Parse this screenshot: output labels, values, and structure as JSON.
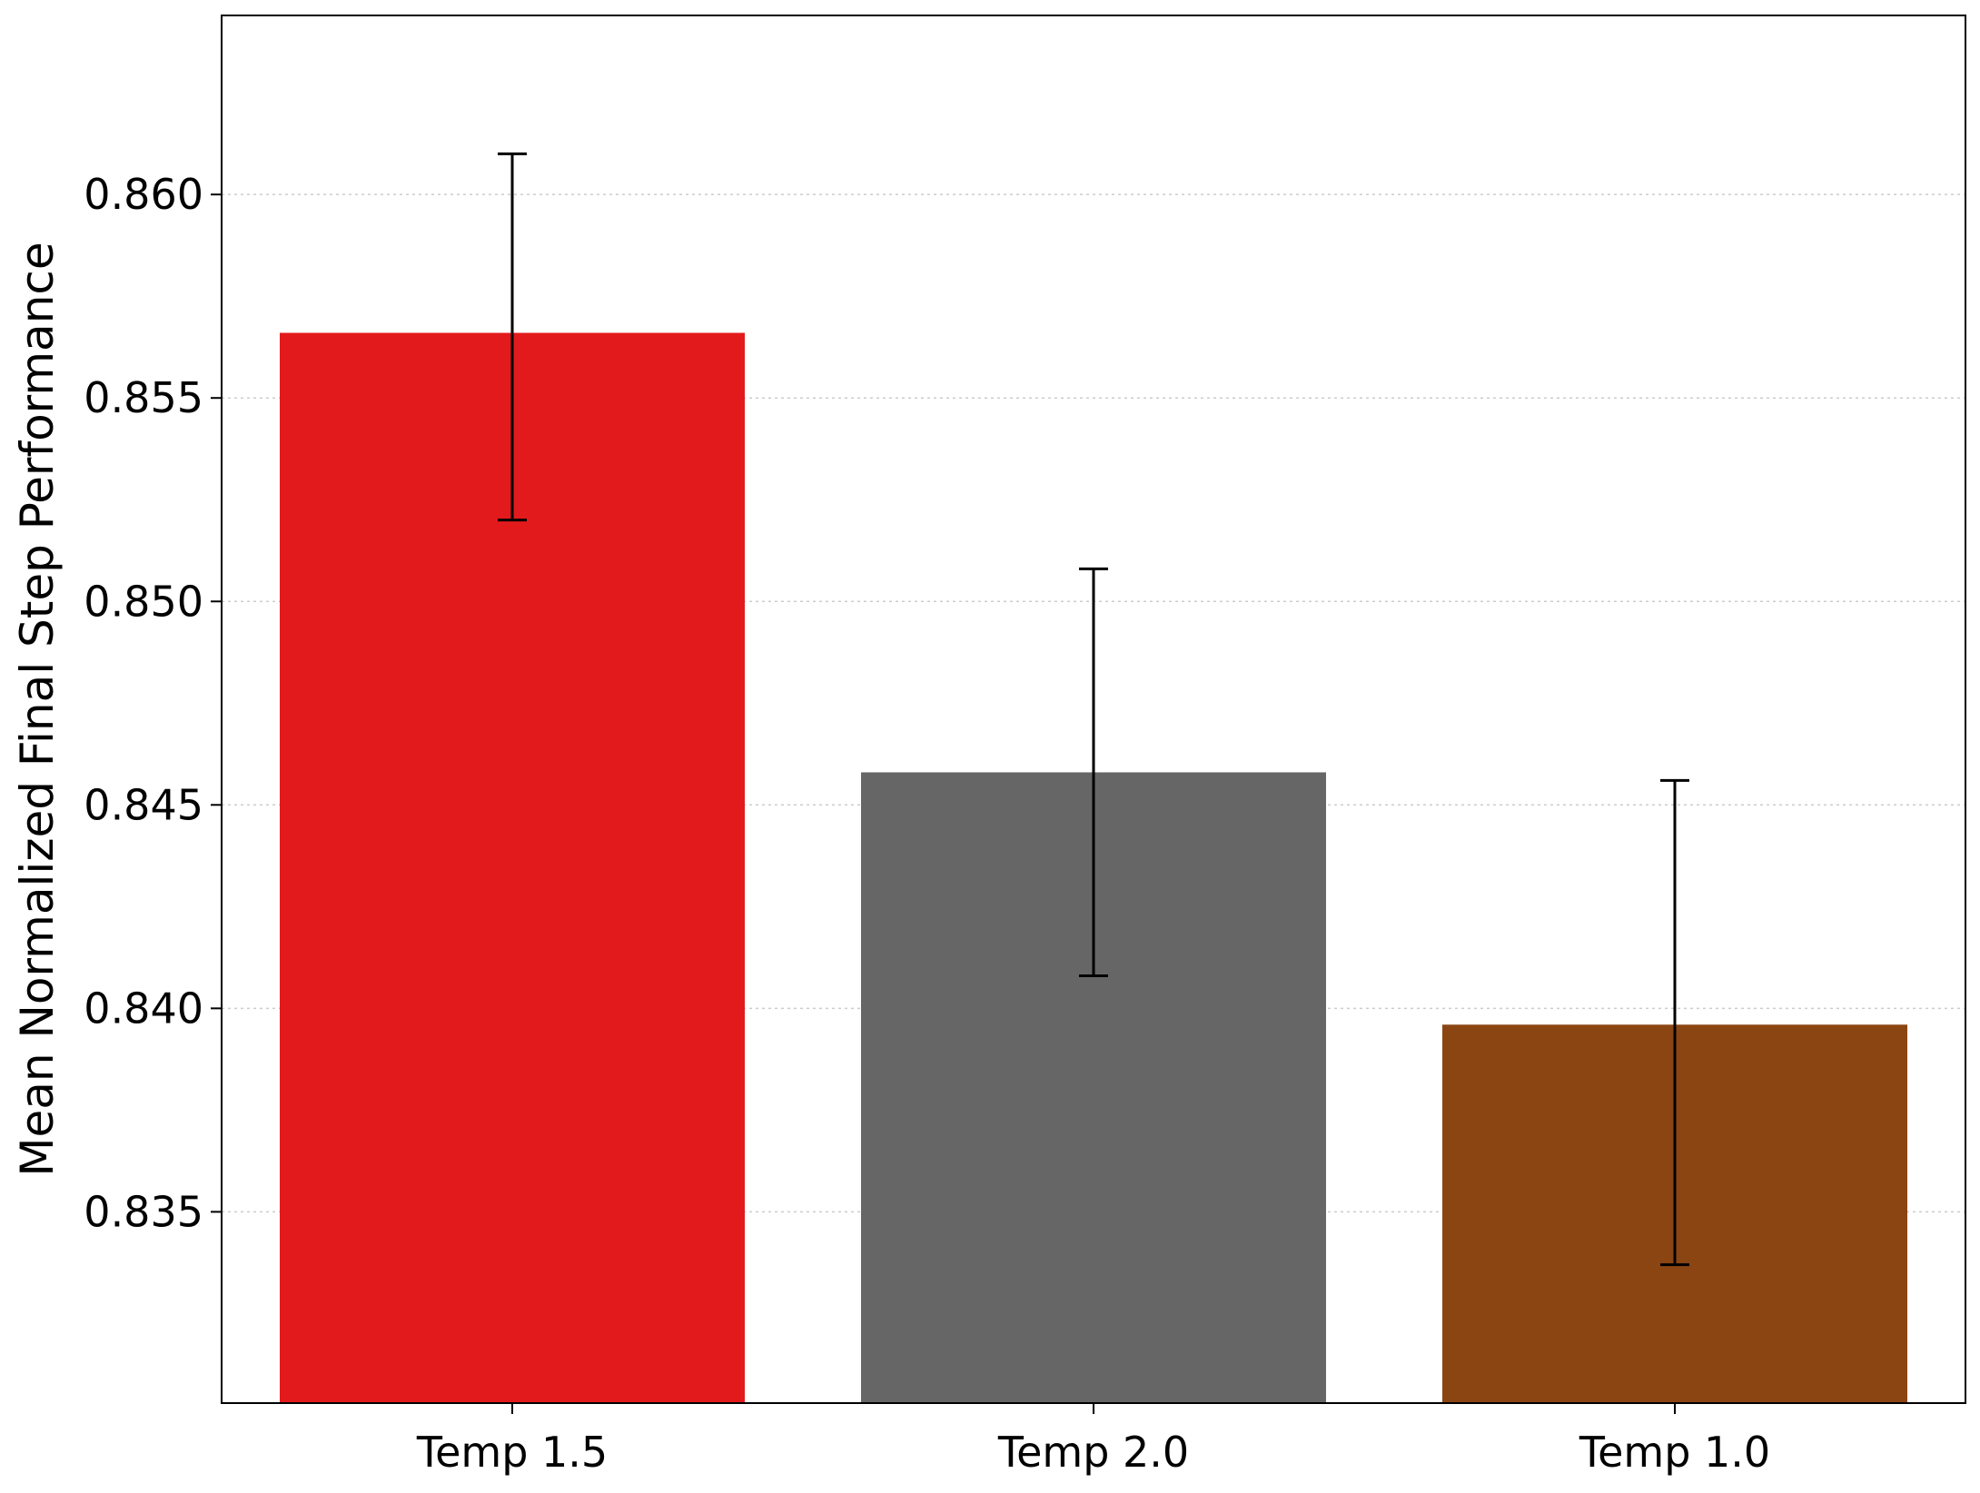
{
  "chart_data": {
    "type": "bar",
    "title": "",
    "xlabel": "",
    "ylabel": "Mean Normalized Final Step Performance",
    "categories": [
      "Temp 1.5",
      "Temp 2.0",
      "Temp 1.0"
    ],
    "values": [
      0.8566,
      0.8458,
      0.8396
    ],
    "error_bars": {
      "lower": [
        0.852,
        0.8408,
        0.8337
      ],
      "upper": [
        0.861,
        0.8508,
        0.8456
      ]
    },
    "bar_colors": [
      "#e31a1c",
      "#666666",
      "#8b4513"
    ],
    "ylim": [
      0.8303,
      0.8644
    ],
    "yticks": [
      0.835,
      0.84,
      0.845,
      0.85,
      0.855,
      0.86
    ],
    "ytick_labels": [
      "0.835",
      "0.840",
      "0.845",
      "0.850",
      "0.855",
      "0.860"
    ],
    "grid": {
      "y": true,
      "x": false,
      "style": "dotted"
    },
    "legend": "none"
  }
}
